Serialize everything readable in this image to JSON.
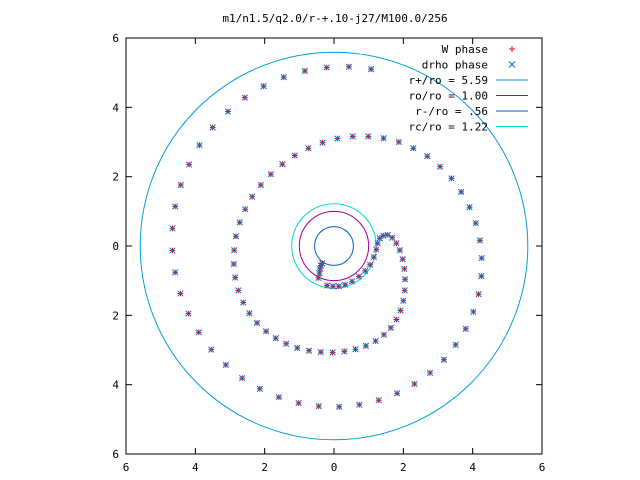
{
  "chart_data": {
    "type": "scatter",
    "title": "m1/n1.5/q2.0/r-+.10-j27/M100.0/256",
    "xlabel": "",
    "ylabel": "",
    "xlim": [
      -6,
      6
    ],
    "ylim": [
      -6,
      6
    ],
    "x_ticks": [
      "6",
      "4",
      "2",
      "0",
      "2",
      "4",
      "6"
    ],
    "y_ticks": [
      "6",
      "4",
      "2",
      "0",
      "2",
      "4",
      "6"
    ],
    "x_tick_values": [
      -6,
      -4,
      -2,
      0,
      2,
      4,
      6
    ],
    "y_tick_values": [
      6,
      4,
      2,
      0,
      -2,
      -4,
      -6
    ],
    "grid": false,
    "legend_position": "top-right",
    "colors": {
      "w_phase": "#ff0000",
      "drho_phase": "#0070d0",
      "r_plus": "#00a0d8",
      "ro": "#a000a0",
      "r_minus": "#0060c0",
      "rc": "#00d8d8"
    },
    "circles": [
      {
        "name": "r+/ro = 5.59",
        "radius": 5.59,
        "color": "#00a0d8"
      },
      {
        "name": "ro/ro = 1.00",
        "radius": 1.0,
        "color": "#a000a0"
      },
      {
        "name": "r-/ro = .56",
        "radius": 0.56,
        "color": "#0060c0"
      },
      {
        "name": "rc/ro = 1.22",
        "radius": 1.22,
        "color": "#00d8d8"
      }
    ],
    "series": [
      {
        "name": "W phase",
        "marker": "plus",
        "points": [
          [
            -0.45,
            -0.92
          ],
          [
            -0.42,
            -0.78
          ],
          [
            -0.4,
            -0.66
          ],
          [
            -0.38,
            -0.56
          ],
          [
            -0.34,
            -0.5
          ],
          [
            -0.2,
            -1.14
          ],
          [
            -0.03,
            -1.16
          ],
          [
            0.14,
            -1.16
          ],
          [
            0.32,
            -1.12
          ],
          [
            0.52,
            -1.02
          ],
          [
            0.72,
            -0.88
          ],
          [
            0.9,
            -0.72
          ],
          [
            1.04,
            -0.54
          ],
          [
            1.15,
            -0.32
          ],
          [
            1.22,
            -0.1
          ],
          [
            1.26,
            0.08
          ],
          [
            1.32,
            0.22
          ],
          [
            1.42,
            0.3
          ],
          [
            1.55,
            0.32
          ],
          [
            1.68,
            0.24
          ],
          [
            1.8,
            0.08
          ],
          [
            1.9,
            -0.12
          ],
          [
            1.98,
            -0.38
          ],
          [
            2.03,
            -0.66
          ],
          [
            2.05,
            -0.96
          ],
          [
            2.04,
            -1.28
          ],
          [
            2.0,
            -1.58
          ],
          [
            1.92,
            -1.86
          ],
          [
            1.8,
            -2.12
          ],
          [
            1.64,
            -2.36
          ],
          [
            1.44,
            -2.56
          ],
          [
            1.2,
            -2.74
          ],
          [
            0.92,
            -2.88
          ],
          [
            0.62,
            -2.98
          ],
          [
            0.3,
            -3.04
          ],
          [
            -0.04,
            -3.07
          ],
          [
            -0.38,
            -3.06
          ],
          [
            -0.72,
            -3.02
          ],
          [
            -1.06,
            -2.94
          ],
          [
            -1.38,
            -2.82
          ],
          [
            -1.68,
            -2.66
          ],
          [
            -1.96,
            -2.46
          ],
          [
            -2.22,
            -2.22
          ],
          [
            -2.44,
            -1.94
          ],
          [
            -2.62,
            -1.63
          ],
          [
            -2.76,
            -1.28
          ],
          [
            -2.85,
            -0.91
          ],
          [
            -2.89,
            -0.52
          ],
          [
            -2.88,
            -0.12
          ],
          [
            -2.83,
            0.28
          ],
          [
            -2.72,
            0.68
          ],
          [
            -2.56,
            1.06
          ],
          [
            -2.36,
            1.42
          ],
          [
            -2.11,
            1.76
          ],
          [
            -1.82,
            2.07
          ],
          [
            -1.49,
            2.36
          ],
          [
            -1.13,
            2.61
          ],
          [
            -0.74,
            2.82
          ],
          [
            -0.33,
            2.98
          ],
          [
            0.1,
            3.1
          ],
          [
            0.54,
            3.16
          ],
          [
            0.99,
            3.16
          ],
          [
            1.43,
            3.11
          ],
          [
            1.87,
            3.0
          ],
          [
            2.29,
            2.82
          ],
          [
            2.69,
            2.59
          ],
          [
            3.06,
            2.29
          ],
          [
            3.39,
            1.95
          ],
          [
            3.67,
            1.56
          ],
          [
            3.91,
            1.12
          ],
          [
            4.09,
            0.66
          ],
          [
            4.21,
            0.16
          ],
          [
            4.26,
            -0.35
          ],
          [
            4.25,
            -0.87
          ],
          [
            4.17,
            -1.39
          ],
          [
            4.02,
            -1.9
          ],
          [
            3.8,
            -2.39
          ],
          [
            3.51,
            -2.85
          ],
          [
            3.17,
            -3.28
          ],
          [
            2.77,
            -3.66
          ],
          [
            2.32,
            -3.98
          ],
          [
            1.82,
            -4.25
          ],
          [
            1.29,
            -4.45
          ],
          [
            0.73,
            -4.58
          ],
          [
            0.15,
            -4.64
          ],
          [
            -0.44,
            -4.62
          ],
          [
            -1.02,
            -4.53
          ],
          [
            -1.59,
            -4.36
          ],
          [
            -2.14,
            -4.12
          ],
          [
            -2.65,
            -3.81
          ],
          [
            -3.12,
            -3.43
          ],
          [
            -3.54,
            -2.99
          ],
          [
            -3.9,
            -2.49
          ],
          [
            -4.2,
            -1.95
          ],
          [
            -4.43,
            -1.37
          ],
          [
            -4.58,
            -0.76
          ],
          [
            -4.66,
            -0.13
          ],
          [
            -4.66,
            0.51
          ],
          [
            -4.58,
            1.14
          ],
          [
            -4.42,
            1.76
          ],
          [
            -4.18,
            2.35
          ],
          [
            -3.88,
            2.91
          ],
          [
            -3.5,
            3.42
          ],
          [
            -3.06,
            3.88
          ],
          [
            -2.57,
            4.28
          ],
          [
            -2.03,
            4.61
          ],
          [
            -1.45,
            4.87
          ],
          [
            -0.84,
            5.05
          ],
          [
            -0.21,
            5.15
          ],
          [
            0.43,
            5.17
          ],
          [
            1.07,
            5.1
          ]
        ]
      },
      {
        "name": "drho phase",
        "marker": "cross",
        "points": [
          [
            -0.45,
            -0.92
          ],
          [
            -0.42,
            -0.78
          ],
          [
            -0.4,
            -0.66
          ],
          [
            -0.38,
            -0.56
          ],
          [
            -0.34,
            -0.5
          ],
          [
            -0.2,
            -1.14
          ],
          [
            -0.03,
            -1.16
          ],
          [
            0.14,
            -1.16
          ],
          [
            0.32,
            -1.12
          ],
          [
            0.52,
            -1.02
          ],
          [
            0.72,
            -0.88
          ],
          [
            0.9,
            -0.72
          ],
          [
            1.04,
            -0.54
          ],
          [
            1.15,
            -0.32
          ],
          [
            1.22,
            -0.1
          ],
          [
            1.26,
            0.08
          ],
          [
            1.32,
            0.22
          ],
          [
            1.42,
            0.3
          ],
          [
            1.55,
            0.32
          ],
          [
            1.68,
            0.24
          ],
          [
            1.8,
            0.08
          ],
          [
            1.9,
            -0.12
          ],
          [
            1.98,
            -0.38
          ],
          [
            2.03,
            -0.66
          ],
          [
            2.05,
            -0.96
          ],
          [
            2.04,
            -1.28
          ],
          [
            2.0,
            -1.58
          ],
          [
            1.92,
            -1.86
          ],
          [
            1.8,
            -2.12
          ],
          [
            1.64,
            -2.36
          ],
          [
            1.44,
            -2.56
          ],
          [
            1.2,
            -2.74
          ],
          [
            0.92,
            -2.88
          ],
          [
            0.62,
            -2.98
          ],
          [
            0.3,
            -3.04
          ],
          [
            -0.04,
            -3.07
          ],
          [
            -0.38,
            -3.06
          ],
          [
            -0.72,
            -3.02
          ],
          [
            -1.06,
            -2.94
          ],
          [
            -1.38,
            -2.82
          ],
          [
            -1.68,
            -2.66
          ],
          [
            -1.96,
            -2.46
          ],
          [
            -2.22,
            -2.22
          ],
          [
            -2.44,
            -1.94
          ],
          [
            -2.62,
            -1.63
          ],
          [
            -2.76,
            -1.28
          ],
          [
            -2.85,
            -0.91
          ],
          [
            -2.89,
            -0.52
          ],
          [
            -2.88,
            -0.12
          ],
          [
            -2.83,
            0.28
          ],
          [
            -2.72,
            0.68
          ],
          [
            -2.56,
            1.06
          ],
          [
            -2.36,
            1.42
          ],
          [
            -2.11,
            1.76
          ],
          [
            -1.82,
            2.07
          ],
          [
            -1.49,
            2.36
          ],
          [
            -1.13,
            2.61
          ],
          [
            -0.74,
            2.82
          ],
          [
            -0.33,
            2.98
          ],
          [
            0.1,
            3.1
          ],
          [
            0.54,
            3.16
          ],
          [
            0.99,
            3.16
          ],
          [
            1.43,
            3.11
          ],
          [
            1.87,
            3.0
          ],
          [
            2.29,
            2.82
          ],
          [
            2.69,
            2.59
          ],
          [
            3.06,
            2.29
          ],
          [
            3.39,
            1.95
          ],
          [
            3.67,
            1.56
          ],
          [
            3.91,
            1.12
          ],
          [
            4.09,
            0.66
          ],
          [
            4.21,
            0.16
          ],
          [
            4.26,
            -0.35
          ],
          [
            4.25,
            -0.87
          ],
          [
            4.17,
            -1.39
          ],
          [
            4.02,
            -1.9
          ],
          [
            3.8,
            -2.39
          ],
          [
            3.51,
            -2.85
          ],
          [
            3.17,
            -3.28
          ],
          [
            2.77,
            -3.66
          ],
          [
            2.32,
            -3.98
          ],
          [
            1.82,
            -4.25
          ],
          [
            1.29,
            -4.45
          ],
          [
            0.73,
            -4.58
          ],
          [
            0.15,
            -4.64
          ],
          [
            -0.44,
            -4.62
          ],
          [
            -1.02,
            -4.53
          ],
          [
            -1.59,
            -4.36
          ],
          [
            -2.14,
            -4.12
          ],
          [
            -2.65,
            -3.81
          ],
          [
            -3.12,
            -3.43
          ],
          [
            -3.54,
            -2.99
          ],
          [
            -3.9,
            -2.49
          ],
          [
            -4.2,
            -1.95
          ],
          [
            -4.43,
            -1.37
          ],
          [
            -4.58,
            -0.76
          ],
          [
            -4.66,
            -0.13
          ],
          [
            -4.66,
            0.51
          ],
          [
            -4.58,
            1.14
          ],
          [
            -4.42,
            1.76
          ],
          [
            -4.18,
            2.35
          ],
          [
            -3.88,
            2.91
          ],
          [
            -3.5,
            3.42
          ],
          [
            -3.06,
            3.88
          ],
          [
            -2.57,
            4.28
          ],
          [
            -2.03,
            4.61
          ],
          [
            -1.45,
            4.87
          ],
          [
            -0.84,
            5.05
          ],
          [
            -0.21,
            5.15
          ],
          [
            0.43,
            5.17
          ],
          [
            1.07,
            5.1
          ]
        ]
      }
    ]
  }
}
